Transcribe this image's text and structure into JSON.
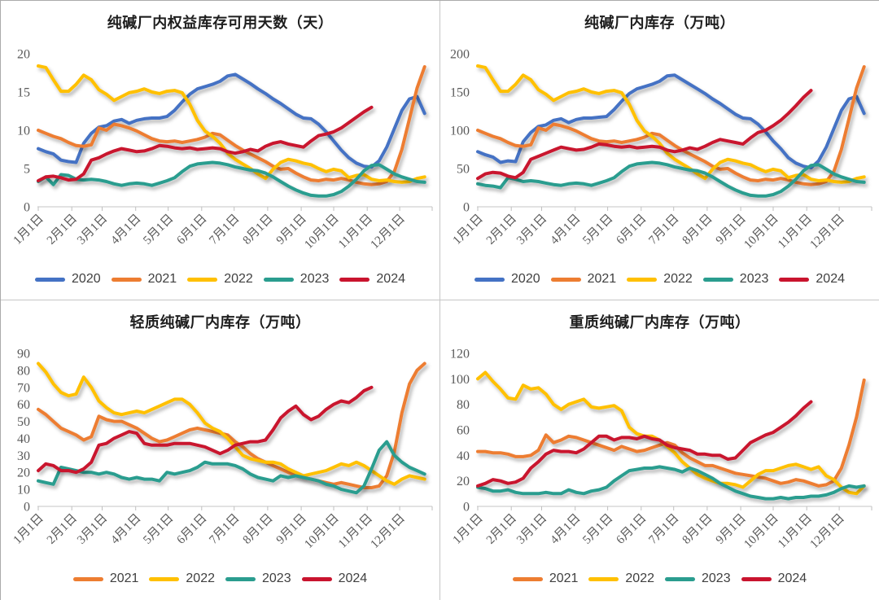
{
  "figure": {
    "background": "#ffffff",
    "border_color": "#aaaaaa",
    "axis_color": "#d9d9d9",
    "tick_color": "#bfbfbf",
    "label_color": "#595959",
    "title_color": "#1e1e1e"
  },
  "palette": {
    "2020": "#4472C4",
    "2021": "#ED7D31",
    "2022": "#FFC000",
    "2023": "#2A9D8F",
    "2024": "#C9142E"
  },
  "chart_data": [
    {
      "type": "line",
      "title": "纯碱厂内权益库存可用天数（天）",
      "xlabel": "",
      "ylabel": "",
      "ylim": [
        0,
        20
      ],
      "ytick_step": 5,
      "grid": false,
      "legend_position": "bottom",
      "x_labels": [
        "1月1日",
        "2月1日",
        "3月1日",
        "4月1日",
        "5月1日",
        "6月1日",
        "7月1日",
        "8月1日",
        "9月1日",
        "10月1日",
        "11月1日",
        "12月1日"
      ],
      "x_unit": "weekly",
      "series": [
        {
          "name": "2020",
          "color": "#4472C4",
          "values": [
            7.6,
            7.2,
            6.9,
            6.1,
            5.9,
            5.8,
            8.3,
            9.6,
            10.4,
            10.6,
            11.2,
            11.4,
            10.9,
            11.3,
            11.5,
            11.6,
            11.6,
            11.8,
            12.6,
            13.7,
            14.7,
            15.4,
            15.7,
            16.0,
            16.4,
            17.1,
            17.3,
            16.7,
            16.1,
            15.4,
            14.8,
            14.1,
            13.5,
            12.8,
            12.1,
            11.6,
            11.5,
            10.8,
            9.8,
            8.6,
            7.4,
            6.4,
            5.7,
            5.3,
            5.2,
            6.0,
            7.8,
            10.2,
            12.6,
            14.1,
            14.4,
            12.2
          ]
        },
        {
          "name": "2021",
          "color": "#ED7D31",
          "values": [
            10.0,
            9.6,
            9.2,
            8.9,
            8.4,
            8.0,
            7.9,
            8.1,
            10.3,
            10.0,
            10.8,
            10.6,
            10.3,
            9.9,
            9.4,
            8.9,
            8.6,
            8.5,
            8.6,
            8.4,
            8.6,
            8.8,
            9.1,
            9.6,
            9.4,
            8.7,
            8.0,
            7.4,
            6.9,
            6.4,
            5.9,
            5.3,
            4.9,
            5.0,
            4.4,
            3.9,
            3.5,
            3.4,
            3.6,
            3.5,
            3.7,
            3.5,
            3.2,
            3.0,
            2.9,
            3.0,
            3.3,
            4.6,
            7.5,
            11.5,
            15.5,
            18.3
          ]
        },
        {
          "name": "2022",
          "color": "#FFC000",
          "values": [
            18.4,
            18.2,
            16.6,
            15.1,
            15.1,
            16.0,
            17.2,
            16.6,
            15.3,
            14.7,
            13.9,
            14.4,
            14.9,
            15.1,
            15.4,
            15.0,
            14.8,
            15.1,
            15.2,
            14.9,
            13.4,
            11.3,
            9.9,
            9.2,
            8.3,
            7.0,
            6.2,
            5.6,
            5.0,
            4.3,
            3.7,
            4.9,
            5.8,
            6.2,
            6.0,
            5.7,
            5.5,
            5.0,
            4.6,
            4.9,
            4.7,
            3.8,
            4.1,
            4.2,
            3.6,
            3.4,
            3.5,
            3.3,
            3.2,
            3.3,
            3.7,
            3.9
          ]
        },
        {
          "name": "2023",
          "color": "#2A9D8F",
          "values": [
            3.3,
            3.9,
            2.9,
            4.2,
            4.1,
            3.6,
            3.5,
            3.6,
            3.5,
            3.3,
            3.0,
            2.8,
            3.0,
            3.1,
            3.0,
            2.8,
            3.1,
            3.4,
            3.8,
            4.6,
            5.3,
            5.6,
            5.7,
            5.8,
            5.7,
            5.5,
            5.2,
            5.0,
            4.8,
            4.7,
            4.4,
            3.9,
            3.3,
            2.7,
            2.2,
            1.8,
            1.5,
            1.4,
            1.4,
            1.6,
            2.0,
            2.7,
            3.6,
            4.7,
            5.4,
            5.5,
            4.9,
            4.3,
            3.9,
            3.6,
            3.3,
            3.2
          ]
        },
        {
          "name": "2024",
          "color": "#C9142E",
          "values": [
            3.4,
            3.9,
            4.0,
            3.8,
            3.5,
            3.6,
            4.3,
            6.1,
            6.4,
            6.9,
            7.3,
            7.6,
            7.4,
            7.2,
            7.3,
            7.6,
            8.0,
            7.9,
            7.7,
            7.6,
            7.7,
            7.5,
            7.6,
            7.7,
            7.6,
            7.2,
            7.0,
            7.2,
            7.5,
            7.3,
            7.9,
            8.3,
            8.5,
            8.2,
            8.0,
            7.8,
            8.6,
            9.3,
            9.5,
            9.8,
            10.3,
            11.0,
            11.7,
            12.4,
            13.0
          ]
        }
      ]
    },
    {
      "type": "line",
      "title": "纯碱厂内库存（万吨）",
      "xlabel": "",
      "ylabel": "",
      "ylim": [
        0,
        200
      ],
      "ytick_step": 50,
      "grid": false,
      "legend_position": "bottom",
      "x_labels": [
        "1月1日",
        "2月1日",
        "3月1日",
        "4月1日",
        "5月1日",
        "6月1日",
        "7月1日",
        "8月1日",
        "9月1日",
        "10月1日",
        "11月1日",
        "12月1日"
      ],
      "x_unit": "weekly",
      "series": [
        {
          "name": "2020",
          "color": "#4472C4",
          "values": [
            72,
            68,
            65,
            58,
            60,
            59,
            85,
            97,
            105,
            107,
            113,
            115,
            110,
            114,
            116,
            116,
            117,
            118,
            127,
            138,
            148,
            154,
            157,
            160,
            164,
            171,
            172,
            166,
            160,
            154,
            148,
            141,
            135,
            128,
            121,
            116,
            115,
            108,
            98,
            86,
            76,
            64,
            57,
            53,
            51,
            60,
            78,
            102,
            126,
            141,
            144,
            122
          ]
        },
        {
          "name": "2021",
          "color": "#ED7D31",
          "values": [
            100,
            96,
            92,
            89,
            84,
            80,
            79,
            81,
            103,
            100,
            108,
            106,
            103,
            99,
            94,
            89,
            86,
            85,
            86,
            84,
            86,
            88,
            91,
            96,
            94,
            87,
            80,
            74,
            69,
            64,
            59,
            53,
            49,
            50,
            44,
            39,
            35,
            34,
            36,
            35,
            37,
            35,
            32,
            30,
            29,
            30,
            33,
            46,
            75,
            115,
            155,
            183
          ]
        },
        {
          "name": "2022",
          "color": "#FFC000",
          "values": [
            184,
            182,
            166,
            151,
            151,
            160,
            172,
            166,
            153,
            147,
            139,
            144,
            149,
            151,
            154,
            150,
            148,
            151,
            152,
            149,
            134,
            113,
            99,
            92,
            83,
            70,
            62,
            56,
            50,
            43,
            37,
            49,
            58,
            62,
            60,
            57,
            55,
            50,
            46,
            49,
            47,
            38,
            41,
            42,
            36,
            34,
            35,
            33,
            32,
            33,
            37,
            39
          ]
        },
        {
          "name": "2023",
          "color": "#2A9D8F",
          "values": [
            30,
            28,
            27,
            25,
            38,
            36,
            33,
            34,
            33,
            31,
            29,
            28,
            30,
            31,
            30,
            28,
            31,
            34,
            38,
            46,
            53,
            56,
            57,
            58,
            57,
            55,
            52,
            50,
            48,
            47,
            44,
            39,
            33,
            27,
            22,
            18,
            15,
            14,
            14,
            16,
            20,
            27,
            36,
            47,
            54,
            55,
            49,
            43,
            39,
            36,
            33,
            32
          ]
        },
        {
          "name": "2024",
          "color": "#C9142E",
          "values": [
            37,
            43,
            45,
            44,
            40,
            38,
            45,
            62,
            66,
            70,
            74,
            78,
            76,
            74,
            75,
            78,
            82,
            81,
            79,
            78,
            79,
            77,
            78,
            79,
            78,
            74,
            72,
            74,
            77,
            75,
            79,
            84,
            88,
            86,
            84,
            82,
            90,
            97,
            100,
            106,
            113,
            122,
            132,
            143,
            152
          ]
        }
      ]
    },
    {
      "type": "line",
      "title": "轻质纯碱厂内库存（万吨）",
      "xlabel": "",
      "ylabel": "",
      "ylim": [
        0,
        90
      ],
      "ytick_step": 10,
      "grid": false,
      "legend_position": "bottom",
      "x_labels": [
        "1月1日",
        "2月1日",
        "3月1日",
        "4月1日",
        "5月1日",
        "6月1日",
        "7月1日",
        "8月1日",
        "9月1日",
        "10月1日",
        "11月1日",
        "12月1日"
      ],
      "x_unit": "weekly",
      "series": [
        {
          "name": "2021",
          "color": "#ED7D31",
          "values": [
            57,
            54,
            50,
            46,
            44,
            42,
            39,
            41,
            53,
            51,
            50,
            50,
            48,
            46,
            43,
            40,
            38,
            39,
            41,
            43,
            45,
            46,
            45,
            44,
            43,
            42,
            38,
            35,
            31,
            28,
            26,
            24,
            22,
            20,
            18,
            17,
            16,
            15,
            14,
            13,
            14,
            13,
            12,
            11,
            11,
            12,
            18,
            32,
            55,
            72,
            80,
            84
          ]
        },
        {
          "name": "2022",
          "color": "#FFC000",
          "values": [
            84,
            79,
            72,
            67,
            65,
            66,
            76,
            70,
            62,
            58,
            55,
            54,
            55,
            56,
            55,
            57,
            59,
            61,
            63,
            63,
            60,
            55,
            49,
            46,
            44,
            40,
            35,
            30,
            28,
            27,
            26,
            26,
            25,
            22,
            20,
            18,
            19,
            20,
            21,
            23,
            25,
            24,
            26,
            24,
            21,
            18,
            15,
            13,
            16,
            18,
            17,
            16
          ]
        },
        {
          "name": "2023",
          "color": "#2A9D8F",
          "values": [
            15,
            14,
            13,
            23,
            22,
            21,
            20,
            20,
            19,
            20,
            19,
            17,
            16,
            17,
            16,
            16,
            15,
            20,
            19,
            20,
            21,
            23,
            26,
            25,
            25,
            25,
            24,
            22,
            19,
            17,
            16,
            15,
            18,
            17,
            18,
            17,
            16,
            15,
            13,
            12,
            10,
            9,
            8,
            12,
            22,
            33,
            38,
            30,
            26,
            23,
            21,
            19
          ]
        },
        {
          "name": "2024",
          "color": "#C9142E",
          "values": [
            21,
            25,
            24,
            21,
            21,
            20,
            22,
            26,
            36,
            37,
            40,
            42,
            44,
            43,
            37,
            36,
            36,
            36,
            37,
            37,
            37,
            36,
            35,
            33,
            31,
            33,
            36,
            37,
            38,
            38,
            39,
            45,
            52,
            56,
            59,
            54,
            51,
            53,
            57,
            60,
            62,
            61,
            64,
            68,
            70
          ]
        }
      ]
    },
    {
      "type": "line",
      "title": "重质纯碱厂内库存（万吨）",
      "xlabel": "",
      "ylabel": "",
      "ylim": [
        0,
        120
      ],
      "ytick_step": 20,
      "grid": false,
      "legend_position": "bottom",
      "x_labels": [
        "1月1日",
        "2月1日",
        "3月1日",
        "4月1日",
        "5月1日",
        "6月1日",
        "7月1日",
        "8月1日",
        "9月1日",
        "10月1日",
        "11月1日",
        "12月1日"
      ],
      "x_unit": "weekly",
      "series": [
        {
          "name": "2021",
          "color": "#ED7D31",
          "values": [
            43,
            43,
            42,
            42,
            41,
            39,
            39,
            40,
            44,
            56,
            50,
            52,
            55,
            54,
            52,
            50,
            48,
            46,
            44,
            47,
            45,
            43,
            44,
            46,
            48,
            50,
            48,
            42,
            38,
            35,
            32,
            32,
            30,
            28,
            26,
            25,
            24,
            23,
            22,
            20,
            18,
            19,
            21,
            20,
            18,
            16,
            17,
            20,
            30,
            48,
            70,
            99
          ]
        },
        {
          "name": "2022",
          "color": "#FFC000",
          "values": [
            100,
            105,
            98,
            92,
            85,
            84,
            95,
            92,
            93,
            88,
            80,
            76,
            80,
            82,
            84,
            78,
            77,
            78,
            79,
            75,
            62,
            57,
            55,
            55,
            52,
            47,
            42,
            35,
            30,
            25,
            22,
            20,
            18,
            18,
            17,
            15,
            20,
            25,
            28,
            28,
            30,
            32,
            33,
            31,
            29,
            31,
            24,
            21,
            15,
            11,
            10,
            16
          ]
        },
        {
          "name": "2023",
          "color": "#2A9D8F",
          "values": [
            15,
            14,
            12,
            12,
            13,
            11,
            10,
            10,
            10,
            11,
            10,
            10,
            13,
            11,
            10,
            12,
            13,
            15,
            20,
            24,
            28,
            29,
            30,
            30,
            31,
            30,
            29,
            27,
            30,
            28,
            25,
            22,
            18,
            15,
            12,
            10,
            8,
            7,
            6,
            6,
            7,
            6,
            7,
            7,
            8,
            8,
            9,
            11,
            14,
            16,
            15,
            16
          ]
        },
        {
          "name": "2024",
          "color": "#C9142E",
          "values": [
            16,
            18,
            21,
            20,
            18,
            19,
            22,
            30,
            35,
            41,
            44,
            43,
            43,
            42,
            45,
            50,
            55,
            55,
            52,
            54,
            54,
            53,
            55,
            53,
            52,
            48,
            46,
            45,
            44,
            41,
            41,
            40,
            40,
            37,
            38,
            44,
            50,
            53,
            56,
            58,
            62,
            66,
            71,
            77,
            82
          ]
        }
      ]
    }
  ]
}
